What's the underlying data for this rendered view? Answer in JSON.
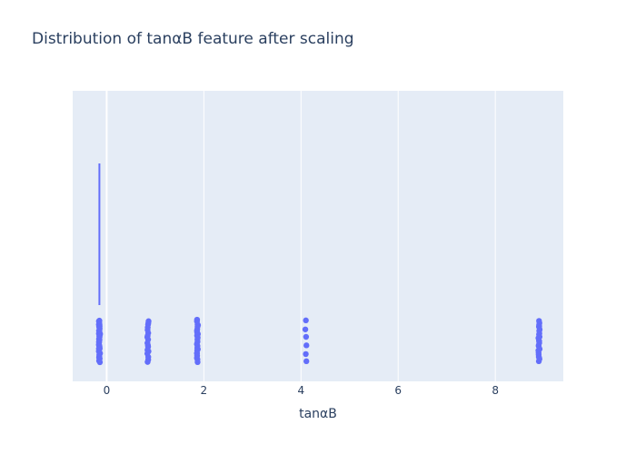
{
  "chart_data": {
    "type": "box",
    "title": "Distribution of tanαB feature after scaling",
    "xlabel": "tanαB",
    "ylabel": "",
    "xlim": [
      -0.7,
      9.4
    ],
    "x_ticks": [
      0,
      2,
      4,
      6,
      8
    ],
    "grid": true,
    "orientation": "horizontal",
    "box": {
      "min": -0.15,
      "q1": -0.15,
      "median": -0.15,
      "q3": -0.15,
      "max": -0.15
    },
    "points_jitter": true,
    "point_clusters": [
      {
        "x": -0.15,
        "count": 38
      },
      {
        "x": 0.85,
        "count": 18
      },
      {
        "x": 1.87,
        "count": 24
      },
      {
        "x": 4.1,
        "count": 6
      },
      {
        "x": 8.9,
        "count": 24
      }
    ],
    "colors": {
      "series": "#636efa",
      "plot_bg": "#e5ecf6",
      "grid": "#ffffff",
      "text": "#2a3f5f"
    }
  }
}
